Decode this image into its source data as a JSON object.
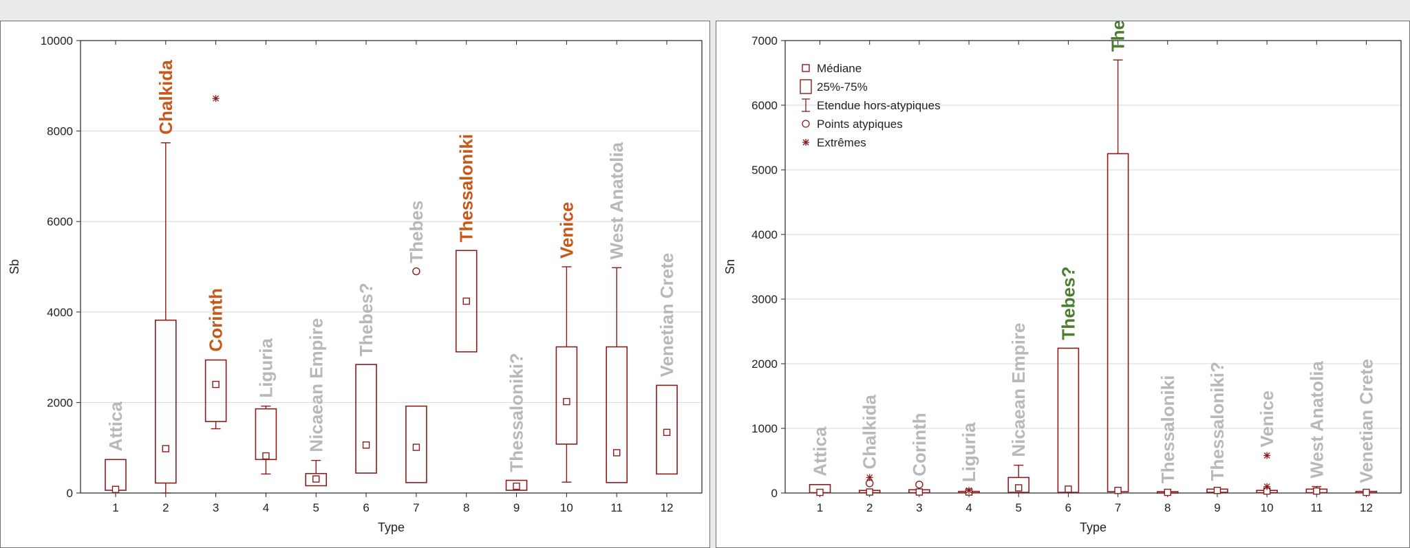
{
  "colors": {
    "box": "#8b1a1a",
    "highlight_orange": "#c8581a",
    "highlight_green": "#4a7d2e",
    "label_grey": "#b8b8b8",
    "grid": "#d7d7d7",
    "axis": "#222222"
  },
  "chart_data": [
    {
      "type": "box",
      "panel": "left",
      "xlabel": "Type",
      "ylabel": "Sb",
      "ylim": [
        0,
        10000
      ],
      "yticks": [
        0,
        2000,
        4000,
        6000,
        8000,
        10000
      ],
      "grid": true,
      "categories": [
        "1",
        "2",
        "3",
        "4",
        "5",
        "6",
        "7",
        "8",
        "9",
        "10",
        "11",
        "12"
      ],
      "group_labels": [
        "Attica",
        "Chalkida",
        "Corinth",
        "Liguria",
        "Nicaean Empire",
        "Thebes?",
        "Thebes",
        "Thessaloniki",
        "Thessaloniki?",
        "Venice",
        "West Anatolia",
        "Venetian Crete"
      ],
      "label_highlight": [
        "none",
        "orange",
        "orange",
        "none",
        "none",
        "none",
        "none",
        "orange",
        "none",
        "orange",
        "none",
        "none"
      ],
      "boxes": [
        {
          "median": 80,
          "q1": 60,
          "q3": 740,
          "low": null,
          "high": null,
          "outliers": [],
          "extremes": []
        },
        {
          "median": 980,
          "q1": 220,
          "q3": 3820,
          "low": 0,
          "high": 7740,
          "outliers": [],
          "extremes": []
        },
        {
          "median": 2400,
          "q1": 1580,
          "q3": 2940,
          "low": 1420,
          "high": null,
          "outliers": [],
          "extremes": [
            8720
          ]
        },
        {
          "median": 820,
          "q1": 740,
          "q3": 1860,
          "low": 420,
          "high": 1920,
          "outliers": [],
          "extremes": []
        },
        {
          "median": 310,
          "q1": 160,
          "q3": 430,
          "low": null,
          "high": 720,
          "outliers": [],
          "extremes": []
        },
        {
          "median": 1060,
          "q1": 440,
          "q3": 2840,
          "low": null,
          "high": null,
          "outliers": [],
          "extremes": []
        },
        {
          "median": 1010,
          "q1": 230,
          "q3": 1920,
          "low": null,
          "high": null,
          "outliers": [
            4900
          ],
          "extremes": []
        },
        {
          "median": 4240,
          "q1": 3120,
          "q3": 5360,
          "low": null,
          "high": null,
          "outliers": [],
          "extremes": []
        },
        {
          "median": 150,
          "q1": 60,
          "q3": 280,
          "low": null,
          "high": null,
          "outliers": [],
          "extremes": []
        },
        {
          "median": 2020,
          "q1": 1080,
          "q3": 3230,
          "low": 240,
          "high": 5000,
          "outliers": [],
          "extremes": []
        },
        {
          "median": 890,
          "q1": 230,
          "q3": 3230,
          "low": null,
          "high": 4980,
          "outliers": [],
          "extremes": []
        },
        {
          "median": 1340,
          "q1": 420,
          "q3": 2380,
          "low": null,
          "high": null,
          "outliers": [],
          "extremes": []
        }
      ]
    },
    {
      "type": "box",
      "panel": "right",
      "xlabel": "Type",
      "ylabel": "Sn",
      "ylim": [
        0,
        7000
      ],
      "yticks": [
        0,
        1000,
        2000,
        3000,
        4000,
        5000,
        6000,
        7000
      ],
      "grid": true,
      "legend": {
        "placement": "top-left",
        "items": [
          {
            "symbol": "median",
            "label": "Médiane"
          },
          {
            "symbol": "box",
            "label": "25%-75%"
          },
          {
            "symbol": "whisker",
            "label": "Etendue hors-atypiques"
          },
          {
            "symbol": "outlier",
            "label": "Points atypiques"
          },
          {
            "symbol": "extreme",
            "label": "Extrêmes"
          }
        ]
      },
      "categories": [
        "1",
        "2",
        "3",
        "4",
        "5",
        "6",
        "7",
        "8",
        "9",
        "10",
        "11",
        "12"
      ],
      "group_labels": [
        "Attica",
        "Chalkida",
        "Corinth",
        "Liguria",
        "Nicaean Empire",
        "Thebes?",
        "Thebes",
        "Thessaloniki",
        "Thessaloniki?",
        "Venice",
        "West Anatolia",
        "Venetian Crete"
      ],
      "label_highlight": [
        "none",
        "none",
        "none",
        "none",
        "none",
        "green",
        "green",
        "none",
        "none",
        "none",
        "none",
        "none"
      ],
      "boxes": [
        {
          "median": 10,
          "q1": 5,
          "q3": 130,
          "low": null,
          "high": null,
          "outliers": [],
          "extremes": []
        },
        {
          "median": 15,
          "q1": 5,
          "q3": 40,
          "low": null,
          "high": null,
          "outliers": [
            150
          ],
          "extremes": [
            240
          ]
        },
        {
          "median": 15,
          "q1": 5,
          "q3": 50,
          "low": null,
          "high": null,
          "outliers": [
            130
          ],
          "extremes": []
        },
        {
          "median": 15,
          "q1": 5,
          "q3": 25,
          "low": null,
          "high": null,
          "outliers": [],
          "extremes": [
            40
          ]
        },
        {
          "median": 80,
          "q1": 10,
          "q3": 240,
          "low": null,
          "high": 430,
          "outliers": [],
          "extremes": []
        },
        {
          "median": 60,
          "q1": 10,
          "q3": 2240,
          "low": null,
          "high": null,
          "outliers": [],
          "extremes": []
        },
        {
          "median": 40,
          "q1": 20,
          "q3": 5250,
          "low": null,
          "high": 6700,
          "outliers": [],
          "extremes": []
        },
        {
          "median": 10,
          "q1": 5,
          "q3": 20,
          "low": null,
          "high": null,
          "outliers": [],
          "extremes": []
        },
        {
          "median": 40,
          "q1": 10,
          "q3": 60,
          "low": null,
          "high": null,
          "outliers": [],
          "extremes": []
        },
        {
          "median": 30,
          "q1": 5,
          "q3": 40,
          "low": null,
          "high": null,
          "outliers": [],
          "extremes": [
            580,
            100
          ]
        },
        {
          "median": 30,
          "q1": 5,
          "q3": 60,
          "low": null,
          "high": 100,
          "outliers": [],
          "extremes": []
        },
        {
          "median": 10,
          "q1": 5,
          "q3": 25,
          "low": null,
          "high": null,
          "outliers": [],
          "extremes": []
        }
      ]
    }
  ]
}
